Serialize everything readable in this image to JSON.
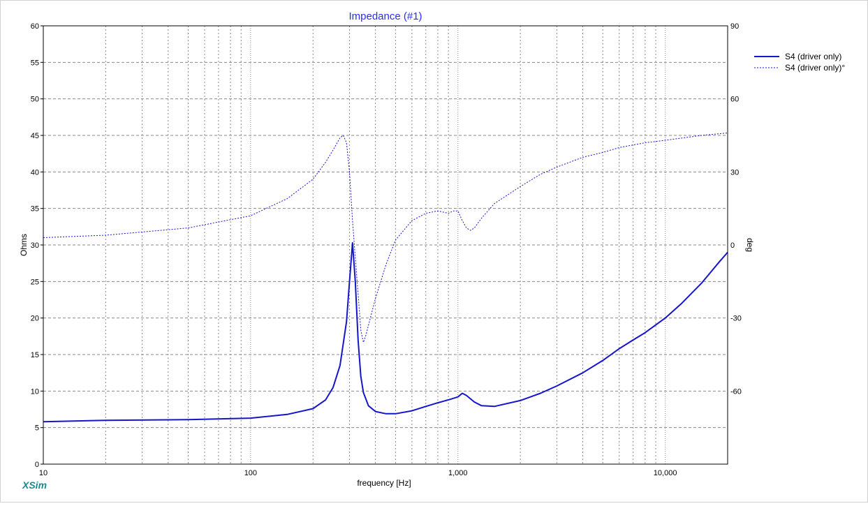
{
  "chart_data": {
    "type": "line",
    "title": "Impedance (#1)",
    "xlabel": "frequency [Hz]",
    "ylabel": "Ohms",
    "y2label": "deg",
    "xscale": "log",
    "xlim": [
      10,
      20000
    ],
    "ylim": [
      0,
      60
    ],
    "y2lim": [
      -90,
      90
    ],
    "x_ticks": [
      10,
      100,
      1000,
      10000
    ],
    "x_tick_labels": [
      "10",
      "100",
      "1,000",
      "10,000"
    ],
    "y_ticks": [
      0,
      5,
      10,
      15,
      20,
      25,
      30,
      35,
      40,
      45,
      50,
      55,
      60
    ],
    "y2_ticks": [
      -60,
      -30,
      0,
      30,
      60,
      90
    ],
    "grid": true,
    "legend_position": "top-right",
    "colors": {
      "series": "#1515cc",
      "title": "#2a2aff",
      "grid": "#8a8a8a",
      "brand": "#1a8a8a"
    },
    "series": [
      {
        "name": "S4 (driver only)",
        "axis": "left",
        "style": "solid",
        "x": [
          10,
          20,
          50,
          100,
          150,
          200,
          230,
          250,
          270,
          290,
          300,
          310,
          320,
          330,
          340,
          350,
          370,
          400,
          450,
          500,
          600,
          700,
          800,
          900,
          1000,
          1050,
          1100,
          1200,
          1300,
          1500,
          2000,
          2500,
          3000,
          4000,
          5000,
          6000,
          7000,
          8000,
          10000,
          12000,
          15000,
          18000,
          20000
        ],
        "y": [
          5.8,
          6.0,
          6.1,
          6.3,
          6.8,
          7.6,
          8.8,
          10.5,
          13.5,
          19.5,
          25.0,
          30.3,
          25.0,
          17.0,
          12.0,
          9.8,
          8.0,
          7.2,
          6.9,
          6.9,
          7.3,
          7.9,
          8.4,
          8.8,
          9.2,
          9.7,
          9.4,
          8.5,
          8.0,
          7.9,
          8.7,
          9.7,
          10.7,
          12.5,
          14.2,
          15.8,
          17.0,
          18.0,
          20.0,
          22.0,
          24.8,
          27.5,
          29.0
        ]
      },
      {
        "name": "S4 (driver only)°",
        "axis": "right",
        "style": "dashed",
        "x": [
          10,
          20,
          50,
          100,
          150,
          200,
          230,
          250,
          270,
          280,
          290,
          300,
          310,
          320,
          330,
          340,
          350,
          360,
          400,
          450,
          500,
          600,
          700,
          800,
          900,
          950,
          1000,
          1050,
          1100,
          1150,
          1200,
          1300,
          1500,
          2000,
          2500,
          3000,
          4000,
          5000,
          6000,
          8000,
          10000,
          15000,
          20000
        ],
        "y": [
          3,
          4,
          7,
          12,
          19,
          27,
          34,
          39,
          44,
          45,
          42,
          30,
          10,
          -5,
          -20,
          -35,
          -40,
          -37,
          -22,
          -8,
          2,
          10,
          13,
          14,
          13,
          14,
          14,
          10,
          7,
          6,
          7,
          11,
          17,
          24,
          29,
          32,
          36,
          38,
          40,
          42,
          43,
          45,
          46
        ]
      }
    ],
    "brand": "XSim"
  }
}
